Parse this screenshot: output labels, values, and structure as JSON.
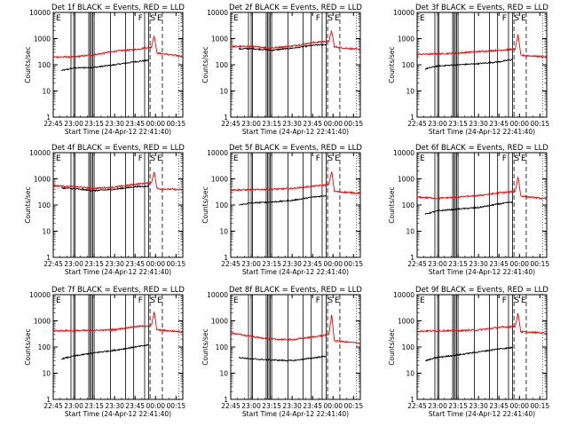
{
  "figure": {
    "panel_grid": "3x3",
    "xtick_labels": [
      "22:45",
      "23:00",
      "23:15",
      "23:30",
      "23:45",
      "00:00",
      "00:15"
    ],
    "ytick_labels": [
      "1",
      "10",
      "100",
      "1000",
      "10000"
    ],
    "xlabel": "Start Time (24-Apr-12 22:41:40)",
    "ylabel": "Counts/sec",
    "marker_letters": [
      "F",
      "S",
      "E"
    ],
    "colors": {
      "events": "#000000",
      "lld": "#ff0000",
      "axes": "#000000",
      "background": "#ffffff"
    }
  },
  "chart_data": [
    {
      "type": "line",
      "title": "Det 1f BLACK = Events, RED = LLD",
      "xlabel": "Start Time (24-Apr-12 22:41:40)",
      "ylabel": "Counts/sec",
      "x_range": [
        "22:45",
        "00:20"
      ],
      "ylim": [
        1,
        10000
      ],
      "yscale": "log",
      "series": [
        {
          "name": "Events",
          "color": "#000000",
          "points": [
            [
              "22:51",
              60
            ],
            [
              "23:00",
              75
            ],
            [
              "23:15",
              80
            ],
            [
              "23:30",
              100
            ],
            [
              "23:45",
              130
            ],
            [
              "23:55",
              150
            ]
          ]
        },
        {
          "name": "LLD",
          "color": "#ff0000",
          "points": [
            [
              "22:45",
              200
            ],
            [
              "23:00",
              200
            ],
            [
              "23:15",
              240
            ],
            [
              "23:30",
              330
            ],
            [
              "23:45",
              380
            ],
            [
              "23:57",
              480
            ],
            [
              "23:59",
              1400
            ],
            [
              "00:01",
              280
            ],
            [
              "00:20",
              210
            ]
          ]
        }
      ]
    },
    {
      "type": "line",
      "title": "Det 2f BLACK = Events, RED = LLD",
      "xlabel": "Start Time (24-Apr-12 22:41:40)",
      "ylabel": "Counts/sec",
      "x_range": [
        "22:45",
        "00:20"
      ],
      "ylim": [
        1,
        10000
      ],
      "yscale": "log",
      "series": [
        {
          "name": "Events",
          "color": "#000000",
          "points": [
            [
              "22:51",
              400
            ],
            [
              "23:00",
              420
            ],
            [
              "23:15",
              360
            ],
            [
              "23:30",
              430
            ],
            [
              "23:45",
              550
            ],
            [
              "23:55",
              600
            ]
          ]
        },
        {
          "name": "LLD",
          "color": "#ff0000",
          "points": [
            [
              "22:45",
              500
            ],
            [
              "23:00",
              500
            ],
            [
              "23:15",
              440
            ],
            [
              "23:30",
              520
            ],
            [
              "23:45",
              700
            ],
            [
              "23:57",
              800
            ],
            [
              "23:59",
              2000
            ],
            [
              "00:01",
              480
            ],
            [
              "00:20",
              380
            ]
          ]
        }
      ]
    },
    {
      "type": "line",
      "title": "Det 3f BLACK = Events, RED = LLD",
      "xlabel": "Start Time (24-Apr-12 22:41:40)",
      "ylabel": "Counts/sec",
      "x_range": [
        "22:45",
        "00:20"
      ],
      "ylim": [
        1,
        10000
      ],
      "yscale": "log",
      "series": [
        {
          "name": "Events",
          "color": "#000000",
          "points": [
            [
              "22:51",
              70
            ],
            [
              "23:00",
              90
            ],
            [
              "23:15",
              100
            ],
            [
              "23:30",
              110
            ],
            [
              "23:45",
              130
            ],
            [
              "23:55",
              160
            ]
          ]
        },
        {
          "name": "LLD",
          "color": "#ff0000",
          "points": [
            [
              "22:45",
              250
            ],
            [
              "23:00",
              260
            ],
            [
              "23:15",
              280
            ],
            [
              "23:30",
              320
            ],
            [
              "23:45",
              360
            ],
            [
              "23:57",
              400
            ],
            [
              "23:59",
              1500
            ],
            [
              "00:01",
              230
            ],
            [
              "00:20",
              200
            ]
          ]
        }
      ]
    },
    {
      "type": "line",
      "title": "Det 4f BLACK = Events, RED = LLD",
      "xlabel": "Start Time (24-Apr-12 22:41:40)",
      "ylabel": "Counts/sec",
      "x_range": [
        "22:45",
        "00:20"
      ],
      "ylim": [
        1,
        10000
      ],
      "yscale": "log",
      "series": [
        {
          "name": "Events",
          "color": "#000000",
          "points": [
            [
              "22:51",
              450
            ],
            [
              "23:00",
              420
            ],
            [
              "23:15",
              350
            ],
            [
              "23:30",
              400
            ],
            [
              "23:45",
              500
            ],
            [
              "23:55",
              520
            ]
          ]
        },
        {
          "name": "LLD",
          "color": "#ff0000",
          "points": [
            [
              "22:45",
              550
            ],
            [
              "23:00",
              500
            ],
            [
              "23:15",
              430
            ],
            [
              "23:30",
              480
            ],
            [
              "23:45",
              620
            ],
            [
              "23:57",
              700
            ],
            [
              "23:59",
              2000
            ],
            [
              "00:01",
              420
            ],
            [
              "00:20",
              380
            ]
          ]
        }
      ]
    },
    {
      "type": "line",
      "title": "Det 5f BLACK = Events, RED = LLD",
      "xlabel": "Start Time (24-Apr-12 22:41:40)",
      "ylabel": "Counts/sec",
      "x_range": [
        "22:45",
        "00:20"
      ],
      "ylim": [
        1,
        10000
      ],
      "yscale": "log",
      "series": [
        {
          "name": "Events",
          "color": "#000000",
          "points": [
            [
              "22:51",
              100
            ],
            [
              "23:00",
              120
            ],
            [
              "23:15",
              130
            ],
            [
              "23:30",
              150
            ],
            [
              "23:45",
              200
            ],
            [
              "23:55",
              230
            ]
          ]
        },
        {
          "name": "LLD",
          "color": "#ff0000",
          "points": [
            [
              "22:45",
              380
            ],
            [
              "23:00",
              380
            ],
            [
              "23:15",
              400
            ],
            [
              "23:30",
              430
            ],
            [
              "23:45",
              520
            ],
            [
              "23:57",
              600
            ],
            [
              "23:59",
              2000
            ],
            [
              "00:01",
              330
            ],
            [
              "00:20",
              280
            ]
          ]
        }
      ]
    },
    {
      "type": "line",
      "title": "Det 6f BLACK = Events, RED = LLD",
      "xlabel": "Start Time (24-Apr-12 22:41:40)",
      "ylabel": "Counts/sec",
      "x_range": [
        "22:45",
        "00:20"
      ],
      "ylim": [
        1,
        10000
      ],
      "yscale": "log",
      "series": [
        {
          "name": "Events",
          "color": "#000000",
          "points": [
            [
              "22:51",
              45
            ],
            [
              "23:00",
              60
            ],
            [
              "23:15",
              70
            ],
            [
              "23:30",
              80
            ],
            [
              "23:45",
              110
            ],
            [
              "23:55",
              130
            ]
          ]
        },
        {
          "name": "LLD",
          "color": "#ff0000",
          "points": [
            [
              "22:45",
              200
            ],
            [
              "23:00",
              180
            ],
            [
              "23:15",
              200
            ],
            [
              "23:30",
              230
            ],
            [
              "23:45",
              290
            ],
            [
              "23:57",
              330
            ],
            [
              "23:59",
              1300
            ],
            [
              "00:01",
              220
            ],
            [
              "00:20",
              170
            ]
          ]
        }
      ]
    },
    {
      "type": "line",
      "title": "Det 7f BLACK = Events, RED = LLD",
      "xlabel": "Start Time (24-Apr-12 22:41:40)",
      "ylabel": "Counts/sec",
      "x_range": [
        "22:45",
        "00:20"
      ],
      "ylim": [
        1,
        10000
      ],
      "yscale": "log",
      "series": [
        {
          "name": "Events",
          "color": "#000000",
          "points": [
            [
              "22:51",
              35
            ],
            [
              "23:00",
              45
            ],
            [
              "23:15",
              60
            ],
            [
              "23:30",
              75
            ],
            [
              "23:45",
              100
            ],
            [
              "23:55",
              120
            ]
          ]
        },
        {
          "name": "LLD",
          "color": "#ff0000",
          "points": [
            [
              "22:45",
              420
            ],
            [
              "23:00",
              420
            ],
            [
              "23:15",
              430
            ],
            [
              "23:30",
              460
            ],
            [
              "23:45",
              600
            ],
            [
              "23:57",
              650
            ],
            [
              "23:59",
              2200
            ],
            [
              "00:01",
              450
            ],
            [
              "00:20",
              380
            ]
          ]
        }
      ]
    },
    {
      "type": "line",
      "title": "Det 8f BLACK = Events, RED = LLD",
      "xlabel": "Start Time (24-Apr-12 22:41:40)",
      "ylabel": "Counts/sec",
      "x_range": [
        "22:45",
        "00:20"
      ],
      "ylim": [
        1,
        10000
      ],
      "yscale": "log",
      "series": [
        {
          "name": "Events",
          "color": "#000000",
          "points": [
            [
              "22:51",
              40
            ],
            [
              "23:00",
              35
            ],
            [
              "23:15",
              32
            ],
            [
              "23:30",
              30
            ],
            [
              "23:45",
              38
            ],
            [
              "23:55",
              45
            ]
          ]
        },
        {
          "name": "LLD",
          "color": "#ff0000",
          "points": [
            [
              "22:45",
              350
            ],
            [
              "23:00",
              250
            ],
            [
              "23:15",
              200
            ],
            [
              "23:30",
              190
            ],
            [
              "23:45",
              240
            ],
            [
              "23:57",
              300
            ],
            [
              "23:59",
              1800
            ],
            [
              "00:01",
              170
            ],
            [
              "00:20",
              140
            ]
          ]
        }
      ]
    },
    {
      "type": "line",
      "title": "Det 9f BLACK = Events, RED = LLD",
      "xlabel": "Start Time (24-Apr-12 22:41:40)",
      "ylabel": "Counts/sec",
      "x_range": [
        "22:45",
        "00:20"
      ],
      "ylim": [
        1,
        10000
      ],
      "yscale": "log",
      "series": [
        {
          "name": "Events",
          "color": "#000000",
          "points": [
            [
              "22:51",
              30
            ],
            [
              "23:00",
              40
            ],
            [
              "23:15",
              50
            ],
            [
              "23:30",
              65
            ],
            [
              "23:45",
              85
            ],
            [
              "23:55",
              95
            ]
          ]
        },
        {
          "name": "LLD",
          "color": "#ff0000",
          "points": [
            [
              "22:45",
              400
            ],
            [
              "23:00",
              420
            ],
            [
              "23:15",
              420
            ],
            [
              "23:30",
              450
            ],
            [
              "23:45",
              560
            ],
            [
              "23:57",
              620
            ],
            [
              "23:59",
              2000
            ],
            [
              "00:01",
              380
            ],
            [
              "00:20",
              340
            ]
          ]
        }
      ]
    }
  ]
}
